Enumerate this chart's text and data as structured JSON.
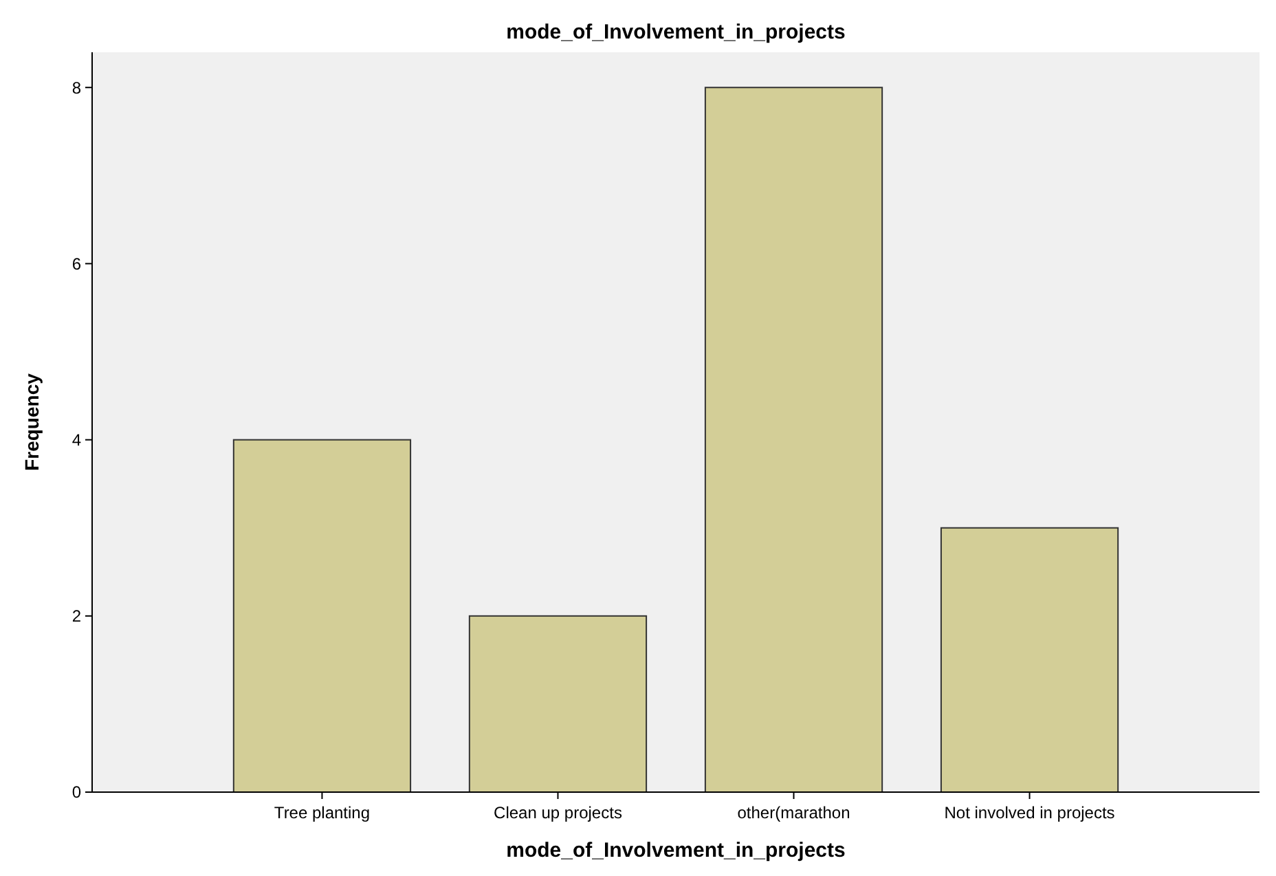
{
  "chart_data": {
    "type": "bar",
    "title": "mode_of_Involvement_in_projects",
    "xlabel": "mode_of_Involvement_in_projects",
    "ylabel": "Frequency",
    "categories": [
      "Tree planting",
      "Clean up projects",
      "other(marathon",
      "Not involved in projects"
    ],
    "values": [
      4,
      2,
      8,
      3
    ],
    "color": "#d3ce97",
    "ylim": [
      0,
      8.4
    ],
    "yticks": [
      0,
      2,
      4,
      6,
      8
    ],
    "grid": false
  }
}
